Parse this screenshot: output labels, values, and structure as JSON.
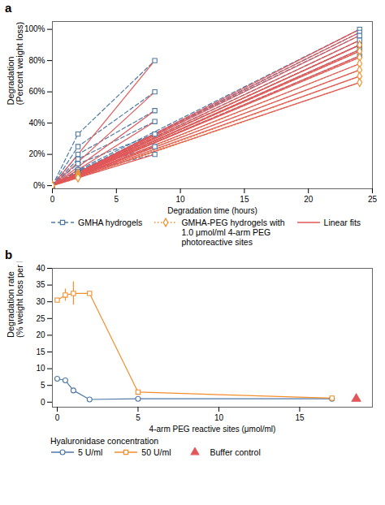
{
  "chart_data": [
    {
      "type": "line",
      "title": "a",
      "xlabel": "Degradation time (hours)",
      "ylabel": "Degradation\n(Percent weight loss)",
      "xlim": [
        0,
        25
      ],
      "ylim": [
        -0.02,
        1.05
      ],
      "xticks": [
        0,
        5,
        10,
        15,
        20,
        25
      ],
      "yticks": [
        {
          "value": 0,
          "label": "0%"
        },
        {
          "value": 0.2,
          "label": "20%"
        },
        {
          "value": 0.4,
          "label": "40%"
        },
        {
          "value": 0.6,
          "label": "60%"
        },
        {
          "value": 0.8,
          "label": "80%"
        },
        {
          "value": 1.0,
          "label": "100%"
        }
      ],
      "legend": "bottom",
      "series": [
        {
          "name": "GMHA hydrogels",
          "line_style": "dashed",
          "marker": "square",
          "lines": [
            {
              "x": [
                0,
                2,
                8
              ],
              "values": [
                0,
                0.33,
                0.8
              ]
            },
            {
              "x": [
                0,
                2,
                8
              ],
              "values": [
                0,
                0.25,
                0.6
              ]
            },
            {
              "x": [
                0,
                2,
                8
              ],
              "values": [
                0,
                0.2,
                0.48
              ]
            },
            {
              "x": [
                0,
                2,
                8
              ],
              "values": [
                0,
                0.17,
                0.41
              ]
            },
            {
              "x": [
                0,
                2,
                8
              ],
              "values": [
                0,
                0.14,
                0.33
              ]
            },
            {
              "x": [
                0,
                2,
                8
              ],
              "values": [
                0,
                0.1,
                0.25
              ]
            },
            {
              "x": [
                0,
                2,
                8
              ],
              "values": [
                0,
                0.08,
                0.2
              ]
            },
            {
              "x": [
                0,
                2,
                24
              ],
              "values": [
                0,
                0.1,
                1.0
              ]
            },
            {
              "x": [
                0,
                2,
                24
              ],
              "values": [
                0,
                0.09,
                0.98
              ]
            },
            {
              "x": [
                0,
                2,
                24
              ],
              "values": [
                0,
                0.09,
                0.96
              ]
            },
            {
              "x": [
                0,
                2,
                24
              ],
              "values": [
                0,
                0.08,
                0.93
              ]
            },
            {
              "x": [
                0,
                2,
                24
              ],
              "values": [
                0,
                0.08,
                0.9
              ]
            },
            {
              "x": [
                0,
                2,
                24
              ],
              "values": [
                0,
                0.07,
                0.87
              ]
            },
            {
              "x": [
                0,
                2,
                24
              ],
              "values": [
                0,
                0.07,
                0.83
              ]
            }
          ]
        },
        {
          "name": "GMHA-PEG hydrogels with\n1.0 μmol/ml 4-arm PEG\nphotoreactive sites",
          "line_style": "dotted",
          "marker": "diamond",
          "lines": [
            {
              "x": [
                0,
                2,
                24
              ],
              "values": [
                0,
                0.08,
                0.9
              ]
            },
            {
              "x": [
                0,
                2,
                24
              ],
              "values": [
                0,
                0.07,
                0.86
              ]
            },
            {
              "x": [
                0,
                2,
                24
              ],
              "values": [
                0,
                0.07,
                0.82
              ]
            },
            {
              "x": [
                0,
                2,
                24
              ],
              "values": [
                0,
                0.06,
                0.78
              ]
            },
            {
              "x": [
                0,
                2,
                24
              ],
              "values": [
                0,
                0.06,
                0.74
              ]
            },
            {
              "x": [
                0,
                2,
                24
              ],
              "values": [
                0,
                0.05,
                0.7
              ]
            },
            {
              "x": [
                0,
                2,
                24
              ],
              "values": [
                0,
                0.05,
                0.66
              ]
            }
          ]
        },
        {
          "name": "Linear fits",
          "line_style": "solid",
          "marker": "none",
          "lines": [
            {
              "x": [
                0,
                8
              ],
              "values": [
                0,
                0.8
              ]
            },
            {
              "x": [
                0,
                8
              ],
              "values": [
                0,
                0.6
              ]
            },
            {
              "x": [
                0,
                8
              ],
              "values": [
                0,
                0.48
              ]
            },
            {
              "x": [
                0,
                8
              ],
              "values": [
                0,
                0.41
              ]
            },
            {
              "x": [
                0,
                8
              ],
              "values": [
                0,
                0.33
              ]
            },
            {
              "x": [
                0,
                8
              ],
              "values": [
                0,
                0.25
              ]
            },
            {
              "x": [
                0,
                8
              ],
              "values": [
                0,
                0.2
              ]
            },
            {
              "x": [
                0,
                24
              ],
              "values": [
                0,
                1.0
              ]
            },
            {
              "x": [
                0,
                24
              ],
              "values": [
                0,
                0.98
              ]
            },
            {
              "x": [
                0,
                24
              ],
              "values": [
                0,
                0.96
              ]
            },
            {
              "x": [
                0,
                24
              ],
              "values": [
                0,
                0.93
              ]
            },
            {
              "x": [
                0,
                24
              ],
              "values": [
                0,
                0.9
              ]
            },
            {
              "x": [
                0,
                24
              ],
              "values": [
                0,
                0.87
              ]
            },
            {
              "x": [
                0,
                24
              ],
              "values": [
                0,
                0.83
              ]
            },
            {
              "x": [
                0,
                24
              ],
              "values": [
                0,
                0.9
              ]
            },
            {
              "x": [
                0,
                24
              ],
              "values": [
                0,
                0.86
              ]
            },
            {
              "x": [
                0,
                24
              ],
              "values": [
                0,
                0.82
              ]
            },
            {
              "x": [
                0,
                24
              ],
              "values": [
                0,
                0.78
              ]
            },
            {
              "x": [
                0,
                24
              ],
              "values": [
                0,
                0.74
              ]
            },
            {
              "x": [
                0,
                24
              ],
              "values": [
                0,
                0.7
              ]
            },
            {
              "x": [
                0,
                24
              ],
              "values": [
                0,
                0.66
              ]
            }
          ]
        }
      ]
    },
    {
      "type": "line",
      "title": "b",
      "xlabel": "4-arm PEG reactive sites (μmol/ml)",
      "ylabel": "Degradation rate\n(% weight loss per hour)",
      "xlim": [
        -0.3,
        19.5
      ],
      "ylim": [
        -1.5,
        40
      ],
      "xticks": [
        0,
        5,
        10,
        15
      ],
      "yticks": [
        0,
        5,
        10,
        15,
        20,
        25,
        30,
        35,
        40
      ],
      "legend": "bottom",
      "legend_title": "Hyaluronidase concentration",
      "series": [
        {
          "name": "5 U/ml",
          "line_style": "solid",
          "marker": "circle",
          "x": [
            0,
            0.5,
            1,
            2,
            5,
            17
          ],
          "values": [
            7.0,
            6.5,
            3.5,
            0.8,
            1.0,
            1.0
          ],
          "errors": [
            null,
            null,
            null,
            null,
            0.3,
            null
          ]
        },
        {
          "name": "50 U/ml",
          "line_style": "solid",
          "marker": "square",
          "x": [
            0,
            0.5,
            1,
            2,
            5,
            17
          ],
          "values": [
            30.5,
            32.0,
            32.5,
            32.5,
            3.0,
            1.2
          ],
          "errors": [
            0.6,
            1.8,
            3.5,
            0.5,
            0.5,
            null
          ]
        },
        {
          "name": "Buffer control",
          "type": "scatter",
          "line_style": "none",
          "marker": "triangle",
          "x": [
            18.5
          ],
          "values": [
            1.0
          ]
        }
      ]
    }
  ]
}
